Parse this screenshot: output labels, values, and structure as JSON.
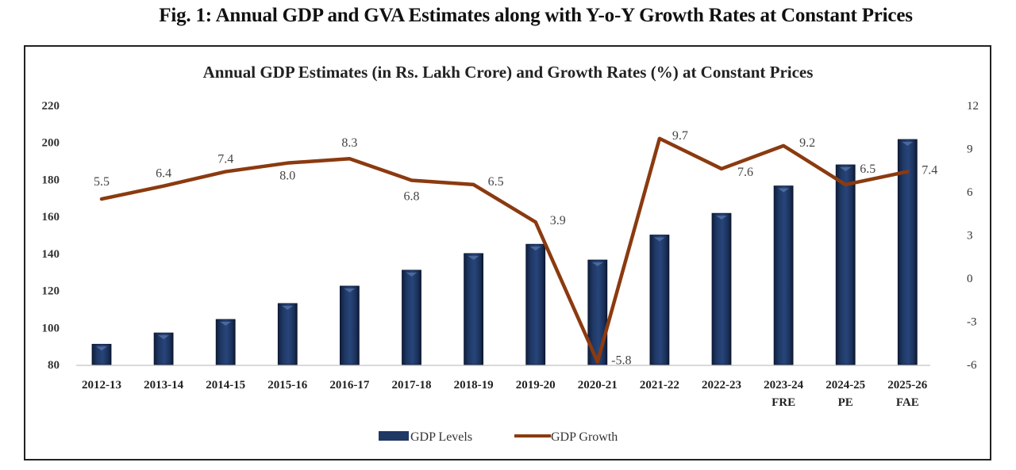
{
  "figure_title": "Fig. 1: Annual GDP and GVA Estimates along with Y-o-Y Growth Rates at Constant Prices",
  "chart_data": {
    "type": "bar",
    "title": "Annual GDP Estimates (in Rs. Lakh Crore) and Growth Rates (%) at Constant Prices",
    "categories": [
      [
        "2012-13"
      ],
      [
        "2013-14"
      ],
      [
        "2014-15"
      ],
      [
        "2015-16"
      ],
      [
        "2016-17"
      ],
      [
        "2017-18"
      ],
      [
        "2018-19"
      ],
      [
        "2019-20"
      ],
      [
        "2020-21"
      ],
      [
        "2021-22"
      ],
      [
        "2022-23"
      ],
      [
        "2023-24",
        "FRE"
      ],
      [
        "2024-25",
        "PE"
      ],
      [
        "2025-26",
        "FAE"
      ]
    ],
    "series": [
      {
        "name": "GDP Levels",
        "type": "bar",
        "axis": "left",
        "color": "#1f3864",
        "values": [
          91.0,
          97.1,
          104.4,
          113.0,
          122.4,
          131.0,
          140.0,
          145.0,
          136.5,
          150.0,
          161.7,
          176.5,
          187.9,
          201.6
        ]
      },
      {
        "name": "GDP Growth",
        "type": "line",
        "axis": "right",
        "color": "#8b3a0f",
        "values": [
          5.5,
          6.4,
          7.4,
          8.0,
          8.3,
          6.8,
          6.5,
          3.9,
          -5.8,
          9.7,
          7.6,
          9.2,
          6.5,
          7.4
        ],
        "data_labels": [
          "5.5",
          "6.4",
          "7.4",
          "8.0",
          "8.3",
          "6.8",
          "6.5",
          "3.9",
          "-5.8",
          "9.7",
          "7.6",
          "9.2",
          "6.5",
          "7.4"
        ]
      }
    ],
    "left_axis": {
      "ylim": [
        80,
        220
      ],
      "ticks": [
        "80",
        "100",
        "120",
        "140",
        "160",
        "180",
        "200",
        "220"
      ]
    },
    "right_axis": {
      "ylim": [
        -6,
        12
      ],
      "ticks": [
        "-6",
        "-3",
        "0",
        "3",
        "6",
        "9",
        "12"
      ]
    },
    "xlabel": "",
    "ylabel": "",
    "grid": false,
    "legend": {
      "position": "bottom",
      "entries": [
        "GDP Levels",
        "GDP Growth"
      ]
    }
  }
}
